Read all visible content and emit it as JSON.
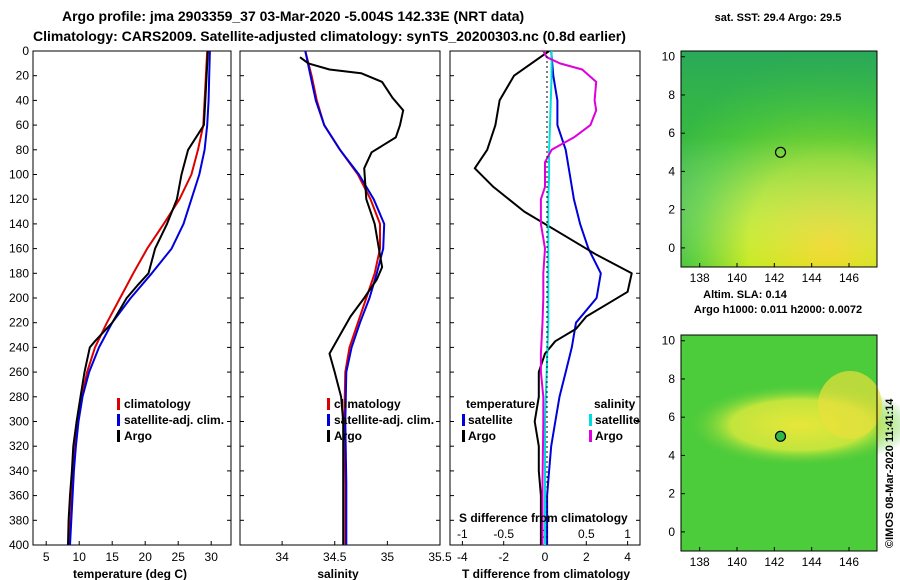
{
  "header": {
    "title1": "Argo profile: jma 2903359_37 03-Mar-2020 -5.004S 142.33E (NRT data)",
    "title2": "Climatology: CARS2009. Satellite-adjusted climatology: synTS_20200303.nc (0.8d earlier)"
  },
  "colors": {
    "climatology": "#dd0000",
    "satellite": "#0000dd",
    "argo": "#000000",
    "satellite_salinity": "#00dddd",
    "argo_salinity": "#dd00dd"
  },
  "depth_axis": {
    "ylim": [
      0,
      400
    ],
    "ticks": [
      "0",
      "20",
      "40",
      "60",
      "80",
      "100",
      "120",
      "140",
      "160",
      "180",
      "200",
      "220",
      "240",
      "260",
      "280",
      "300",
      "320",
      "340",
      "360",
      "380",
      "400"
    ]
  },
  "chart_data": [
    {
      "id": "temperature",
      "type": "line",
      "xlabel": "temperature (deg C)",
      "xlim": [
        3,
        33
      ],
      "xticks": [
        5,
        10,
        15,
        20,
        25,
        30
      ],
      "xtick_labels": [
        "5",
        "10",
        "15",
        "20",
        "25",
        "30"
      ],
      "legend": [
        "climatology",
        "satellite-adj. clim.",
        "Argo"
      ],
      "series": [
        {
          "name": "climatology",
          "color_key": "climatology",
          "points": [
            [
              29.4,
              0
            ],
            [
              29.2,
              20
            ],
            [
              29.0,
              40
            ],
            [
              28.8,
              60
            ],
            [
              28.0,
              80
            ],
            [
              27.0,
              100
            ],
            [
              25.2,
              120
            ],
            [
              22.8,
              140
            ],
            [
              20.3,
              160
            ],
            [
              18.2,
              180
            ],
            [
              16.2,
              200
            ],
            [
              14.2,
              220
            ],
            [
              12.4,
              240
            ],
            [
              11.2,
              260
            ],
            [
              10.4,
              280
            ],
            [
              9.8,
              300
            ],
            [
              9.4,
              320
            ],
            [
              9.1,
              340
            ],
            [
              8.9,
              360
            ],
            [
              8.7,
              380
            ],
            [
              8.5,
              400
            ]
          ]
        },
        {
          "name": "satellite-adj. clim.",
          "color_key": "satellite",
          "points": [
            [
              29.8,
              0
            ],
            [
              29.7,
              20
            ],
            [
              29.6,
              40
            ],
            [
              29.4,
              60
            ],
            [
              29.0,
              80
            ],
            [
              28.2,
              100
            ],
            [
              27.0,
              120
            ],
            [
              25.8,
              140
            ],
            [
              24.0,
              160
            ],
            [
              21.0,
              180
            ],
            [
              17.8,
              200
            ],
            [
              15.0,
              220
            ],
            [
              13.0,
              240
            ],
            [
              11.5,
              260
            ],
            [
              10.5,
              280
            ],
            [
              9.9,
              300
            ],
            [
              9.5,
              320
            ],
            [
              9.2,
              340
            ],
            [
              9.0,
              360
            ],
            [
              8.8,
              380
            ],
            [
              8.6,
              400
            ]
          ]
        },
        {
          "name": "Argo",
          "color_key": "argo",
          "points": [
            [
              29.5,
              0
            ],
            [
              29.3,
              20
            ],
            [
              29.1,
              40
            ],
            [
              28.9,
              60
            ],
            [
              26.5,
              80
            ],
            [
              25.5,
              100
            ],
            [
              24.8,
              120
            ],
            [
              23.3,
              140
            ],
            [
              21.5,
              160
            ],
            [
              20.5,
              180
            ],
            [
              18.8,
              190
            ],
            [
              17.2,
              200
            ],
            [
              15.0,
              220
            ],
            [
              12.4,
              235
            ],
            [
              11.6,
              240
            ],
            [
              10.8,
              260
            ],
            [
              10.2,
              280
            ],
            [
              9.6,
              300
            ],
            [
              9.1,
              320
            ],
            [
              8.9,
              340
            ],
            [
              8.6,
              360
            ],
            [
              8.4,
              380
            ],
            [
              8.3,
              400
            ]
          ]
        }
      ]
    },
    {
      "id": "salinity",
      "type": "line",
      "xlabel": "salinity",
      "xlim": [
        33.6,
        35.5
      ],
      "xticks": [
        34,
        34.5,
        35,
        35.5
      ],
      "xtick_labels": [
        "34",
        "34.5",
        "35",
        "35.5"
      ],
      "legend": [
        "climatology",
        "satellite-adj. clim.",
        "Argo"
      ],
      "series": [
        {
          "name": "climatology",
          "color_key": "climatology",
          "points": [
            [
              34.22,
              0
            ],
            [
              34.28,
              20
            ],
            [
              34.33,
              40
            ],
            [
              34.4,
              60
            ],
            [
              34.55,
              80
            ],
            [
              34.72,
              100
            ],
            [
              34.84,
              120
            ],
            [
              34.93,
              140
            ],
            [
              34.93,
              160
            ],
            [
              34.88,
              180
            ],
            [
              34.8,
              200
            ],
            [
              34.72,
              220
            ],
            [
              34.64,
              240
            ],
            [
              34.6,
              260
            ],
            [
              34.59,
              300
            ],
            [
              34.6,
              350
            ],
            [
              34.6,
              400
            ]
          ]
        },
        {
          "name": "satellite-adj. clim.",
          "color_key": "satellite",
          "points": [
            [
              34.22,
              0
            ],
            [
              34.27,
              20
            ],
            [
              34.32,
              40
            ],
            [
              34.4,
              60
            ],
            [
              34.55,
              80
            ],
            [
              34.73,
              100
            ],
            [
              34.87,
              120
            ],
            [
              34.97,
              140
            ],
            [
              34.96,
              160
            ],
            [
              34.9,
              180
            ],
            [
              34.83,
              200
            ],
            [
              34.74,
              220
            ],
            [
              34.66,
              240
            ],
            [
              34.61,
              260
            ],
            [
              34.6,
              300
            ],
            [
              34.61,
              350
            ],
            [
              34.61,
              400
            ]
          ]
        },
        {
          "name": "Argo",
          "color_key": "argo",
          "points": [
            [
              34.17,
              5
            ],
            [
              34.25,
              10
            ],
            [
              34.45,
              15
            ],
            [
              34.75,
              18
            ],
            [
              34.95,
              25
            ],
            [
              35.05,
              38
            ],
            [
              35.15,
              48
            ],
            [
              35.12,
              60
            ],
            [
              35.08,
              70
            ],
            [
              34.85,
              82
            ],
            [
              34.78,
              95
            ],
            [
              34.8,
              120
            ],
            [
              34.88,
              140
            ],
            [
              34.92,
              160
            ],
            [
              34.95,
              175
            ],
            [
              34.9,
              185
            ],
            [
              34.78,
              200
            ],
            [
              34.65,
              215
            ],
            [
              34.55,
              230
            ],
            [
              34.45,
              245
            ],
            [
              34.5,
              260
            ],
            [
              34.56,
              280
            ],
            [
              34.58,
              300
            ],
            [
              34.58,
              350
            ],
            [
              34.58,
              400
            ]
          ]
        }
      ]
    },
    {
      "id": "difference",
      "type": "line",
      "xlabel": "T difference from climatology",
      "xlim": [
        -4.6,
        4.6
      ],
      "xticks": [
        -4,
        -2,
        0,
        2,
        4
      ],
      "xtick_labels": [
        "-4",
        "-2",
        "0",
        "2",
        "4"
      ],
      "top_axis": {
        "label": "S difference from climatology",
        "ticks": [
          -1,
          -0.5,
          0,
          0.5,
          1
        ],
        "tick_labels": [
          "-1",
          "-0.5",
          "0",
          "0.5",
          "1"
        ],
        "scale_note": "1 salinity unit = 4 temperature units"
      },
      "legend_temperature": [
        "temperature",
        "satellite",
        "Argo"
      ],
      "legend_salinity": [
        "salinity",
        "satellite",
        "Argo"
      ],
      "series": [
        {
          "name": "temperature satellite",
          "color_key": "satellite",
          "points": [
            [
              0.3,
              0
            ],
            [
              0.4,
              20
            ],
            [
              0.6,
              40
            ],
            [
              0.6,
              60
            ],
            [
              1.0,
              80
            ],
            [
              1.2,
              100
            ],
            [
              1.4,
              120
            ],
            [
              1.7,
              140
            ],
            [
              2.1,
              160
            ],
            [
              2.7,
              180
            ],
            [
              2.5,
              200
            ],
            [
              1.5,
              220
            ],
            [
              1.3,
              240
            ],
            [
              1.0,
              260
            ],
            [
              0.7,
              280
            ],
            [
              0.5,
              300
            ],
            [
              0.3,
              320
            ],
            [
              0.2,
              340
            ],
            [
              0.1,
              360
            ],
            [
              0.1,
              380
            ],
            [
              0.1,
              400
            ]
          ]
        },
        {
          "name": "temperature Argo",
          "color_key": "argo",
          "points": [
            [
              0.2,
              0
            ],
            [
              -1.5,
              20
            ],
            [
              -2.2,
              40
            ],
            [
              -2.4,
              60
            ],
            [
              -2.8,
              80
            ],
            [
              -3.4,
              95
            ],
            [
              -2.5,
              110
            ],
            [
              -1.0,
              130
            ],
            [
              1.0,
              150
            ],
            [
              2.5,
              165
            ],
            [
              4.2,
              180
            ],
            [
              4.0,
              195
            ],
            [
              3.0,
              205
            ],
            [
              2.0,
              215
            ],
            [
              1.5,
              225
            ],
            [
              0.5,
              235
            ],
            [
              0.0,
              245
            ],
            [
              -0.3,
              260
            ],
            [
              -0.3,
              280
            ],
            [
              -0.5,
              300
            ],
            [
              -0.3,
              320
            ],
            [
              -0.3,
              340
            ],
            [
              -0.2,
              360
            ],
            [
              -0.2,
              380
            ],
            [
              -0.2,
              400
            ]
          ]
        },
        {
          "name": "salinity satellite",
          "color_key": "satellite_salinity",
          "points": [
            [
              0.08,
              0
            ],
            [
              0.08,
              20
            ],
            [
              0.07,
              40
            ],
            [
              0.06,
              60
            ],
            [
              0.05,
              80
            ],
            [
              0.05,
              100
            ],
            [
              0.04,
              120
            ],
            [
              0.04,
              140
            ],
            [
              0.04,
              160
            ],
            [
              0.04,
              180
            ],
            [
              0.04,
              200
            ],
            [
              0.04,
              220
            ],
            [
              0.03,
              240
            ],
            [
              0.02,
              260
            ],
            [
              0.01,
              280
            ],
            [
              0.0,
              300
            ],
            [
              0.0,
              320
            ],
            [
              0.0,
              340
            ],
            [
              0.0,
              360
            ],
            [
              0.0,
              380
            ],
            [
              0.0,
              400
            ]
          ]
        },
        {
          "name": "salinity Argo",
          "color_key": "argo_salinity",
          "points": [
            [
              -0.02,
              0
            ],
            [
              0.02,
              5
            ],
            [
              0.18,
              10
            ],
            [
              0.45,
              15
            ],
            [
              0.62,
              25
            ],
            [
              0.6,
              40
            ],
            [
              0.62,
              48
            ],
            [
              0.55,
              60
            ],
            [
              0.35,
              70
            ],
            [
              0.08,
              80
            ],
            [
              0.0,
              90
            ],
            [
              0.0,
              110
            ],
            [
              -0.05,
              120
            ],
            [
              -0.05,
              140
            ],
            [
              0.0,
              160
            ],
            [
              -0.02,
              180
            ],
            [
              -0.02,
              200
            ],
            [
              -0.03,
              220
            ],
            [
              -0.05,
              245
            ],
            [
              -0.05,
              260
            ],
            [
              -0.02,
              280
            ],
            [
              -0.02,
              300
            ],
            [
              -0.03,
              350
            ],
            [
              -0.03,
              400
            ]
          ]
        }
      ]
    },
    {
      "id": "sst_map",
      "type": "heatmap",
      "title": "sat. SST: 29.4 Argo: 29.5",
      "xlim": [
        137,
        147.5
      ],
      "ylim": [
        -1,
        10.3
      ],
      "xticks": [
        138,
        140,
        142,
        144,
        146
      ],
      "xtick_labels": [
        "138",
        "140",
        "142",
        "144",
        "146"
      ],
      "yticks": [
        0,
        2,
        4,
        6,
        8,
        10
      ],
      "ytick_labels": [
        "0",
        "2",
        "4",
        "6",
        "8",
        "10"
      ],
      "marker": [
        142.33,
        5.0
      ]
    },
    {
      "id": "sla_map",
      "type": "heatmap",
      "title": "Altim. SLA: 0.14",
      "subtitle": "Argo h1000: 0.011 h2000: 0.0072",
      "xlim": [
        137,
        147.5
      ],
      "ylim": [
        -1,
        10.3
      ],
      "xticks": [
        138,
        140,
        142,
        144,
        146
      ],
      "xtick_labels": [
        "138",
        "140",
        "142",
        "144",
        "146"
      ],
      "yticks": [
        0,
        2,
        4,
        6,
        8,
        10
      ],
      "ytick_labels": [
        "0",
        "2",
        "4",
        "6",
        "8",
        "10"
      ],
      "marker": [
        142.33,
        5.0
      ]
    }
  ],
  "footer": {
    "credit": "©IMOS 08-Mar-2020 11:41:14"
  }
}
